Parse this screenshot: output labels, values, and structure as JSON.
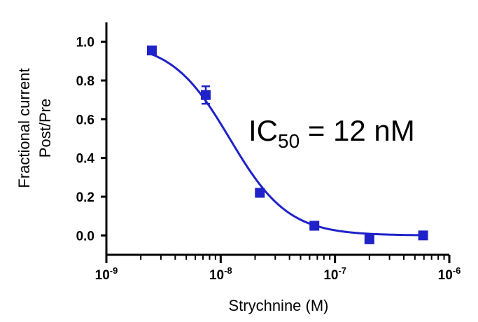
{
  "chart_data": {
    "type": "scatter",
    "xscale": "log",
    "xlabel": "Strychnine (M)",
    "ylabel_lines": [
      "Fractional current",
      "Post/Pre"
    ],
    "xlim": [
      1e-09,
      1e-06
    ],
    "ylim": [
      -0.1,
      1.1
    ],
    "x_ticks": [
      {
        "base": "10",
        "exp": "-9",
        "value": 1e-09
      },
      {
        "base": "10",
        "exp": "-8",
        "value": 1e-08
      },
      {
        "base": "10",
        "exp": "-7",
        "value": 1e-07
      },
      {
        "base": "10",
        "exp": "-6",
        "value": 1e-06
      }
    ],
    "y_ticks": [
      "0.0",
      "0.2",
      "0.4",
      "0.6",
      "0.8",
      "1.0"
    ],
    "series": [
      {
        "points": [
          {
            "x": 2.5e-09,
            "y": 0.955,
            "err": 0.02
          },
          {
            "x": 7.4e-09,
            "y": 0.725,
            "err": 0.045
          },
          {
            "x": 2.2e-08,
            "y": 0.22,
            "err": 0.02
          },
          {
            "x": 6.6e-08,
            "y": 0.05,
            "err": 0.0
          },
          {
            "x": 2e-07,
            "y": -0.02,
            "err": 0.0
          },
          {
            "x": 5.9e-07,
            "y": 0.0,
            "err": 0.0
          }
        ],
        "fit": {
          "model": "sigmoidal dose-response",
          "ic50": 1.2e-08,
          "hill": 1.7,
          "top": 1.0,
          "bottom": 0.0
        }
      }
    ],
    "annotation": {
      "prefix": "IC",
      "subscript": "50",
      "suffix": " = 12 nM"
    },
    "colors": {
      "series": "#1f22c8",
      "axis": "#000000"
    },
    "grid": false,
    "legend": "none"
  }
}
